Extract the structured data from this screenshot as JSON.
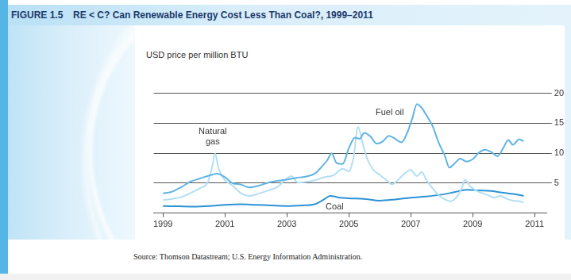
{
  "chart_data": {
    "type": "line",
    "figure_label": "FIGURE 1.5",
    "title": "RE < C? Can Renewable Energy Cost Less Than Coal?, 1999–2011",
    "ylabel": "USD price per million BTU",
    "source": "Source: Thomson Datastream; U.S. Energy Information Administration.",
    "xlim": [
      1998.7,
      2011.4
    ],
    "xticks": [
      1999,
      2001,
      2003,
      2005,
      2007,
      2009,
      2011
    ],
    "ylim": [
      0,
      20
    ],
    "yticks": [
      5,
      10,
      15,
      20
    ],
    "grid": true,
    "series": [
      {
        "name": "Fuel oil",
        "color": "#5fb3e4",
        "x": [
          1999.0,
          1999.3,
          1999.6,
          1999.9,
          2000.2,
          2000.5,
          2000.75,
          2001.0,
          2001.25,
          2001.5,
          2001.8,
          2002.1,
          2002.4,
          2002.7,
          2003.0,
          2003.3,
          2003.6,
          2003.9,
          2004.1,
          2004.3,
          2004.45,
          2004.6,
          2004.8,
          2005.0,
          2005.2,
          2005.35,
          2005.5,
          2005.7,
          2005.9,
          2006.1,
          2006.3,
          2006.5,
          2006.7,
          2006.9,
          2007.05,
          2007.2,
          2007.35,
          2007.5,
          2007.7,
          2007.9,
          2008.1,
          2008.25,
          2008.4,
          2008.6,
          2008.8,
          2009.0,
          2009.2,
          2009.4,
          2009.6,
          2009.8,
          2010.0,
          2010.15,
          2010.3,
          2010.5,
          2010.65
        ],
        "values": [
          3.3,
          3.6,
          4.4,
          5.3,
          5.8,
          6.3,
          6.6,
          6.0,
          5.0,
          4.8,
          4.3,
          4.6,
          5.1,
          5.4,
          5.6,
          5.9,
          6.1,
          6.6,
          7.6,
          8.8,
          10.0,
          8.4,
          8.2,
          10.8,
          12.6,
          12.4,
          13.4,
          12.8,
          11.6,
          12.0,
          12.9,
          12.4,
          11.8,
          13.6,
          15.8,
          18.2,
          17.6,
          16.4,
          14.6,
          11.8,
          9.6,
          7.6,
          8.2,
          9.1,
          8.6,
          9.0,
          10.1,
          10.6,
          10.2,
          9.5,
          11.0,
          12.2,
          11.4,
          12.3,
          12.0
        ]
      },
      {
        "name": "Natural gas",
        "color": "#b3def4",
        "x": [
          1999.0,
          1999.3,
          1999.6,
          1999.9,
          2000.2,
          2000.45,
          2000.6,
          2000.68,
          2000.8,
          2001.0,
          2001.25,
          2001.5,
          2001.8,
          2002.1,
          2002.4,
          2002.7,
          2003.0,
          2003.15,
          2003.35,
          2003.6,
          2003.9,
          2004.2,
          2004.5,
          2004.8,
          2005.0,
          2005.15,
          2005.3,
          2005.45,
          2005.6,
          2005.8,
          2006.0,
          2006.2,
          2006.4,
          2006.6,
          2006.8,
          2007.0,
          2007.2,
          2007.35,
          2007.5,
          2007.7,
          2007.9,
          2008.1,
          2008.3,
          2008.5,
          2008.65,
          2008.75,
          2008.9,
          2009.1,
          2009.3,
          2009.5,
          2009.7,
          2009.9,
          2010.1,
          2010.3,
          2010.5,
          2010.65
        ],
        "values": [
          2.2,
          2.4,
          2.7,
          3.4,
          4.2,
          5.2,
          8.0,
          10.0,
          7.4,
          5.5,
          4.6,
          3.4,
          2.9,
          3.3,
          3.8,
          4.4,
          5.8,
          6.2,
          5.1,
          5.2,
          5.5,
          6.0,
          6.3,
          7.4,
          7.0,
          9.2,
          14.4,
          11.6,
          9.0,
          7.2,
          6.4,
          5.6,
          4.8,
          5.6,
          6.6,
          7.2,
          6.2,
          6.9,
          5.6,
          4.2,
          3.0,
          2.3,
          2.0,
          2.8,
          4.2,
          5.6,
          4.6,
          3.8,
          3.4,
          3.0,
          2.6,
          2.9,
          2.4,
          2.1,
          2.0,
          1.8
        ]
      },
      {
        "name": "Coal",
        "color": "#2b93d6",
        "x": [
          1999.0,
          1999.5,
          2000.0,
          2000.5,
          2001.0,
          2001.5,
          2002.0,
          2002.5,
          2003.0,
          2003.5,
          2003.9,
          2004.2,
          2004.4,
          2004.7,
          2005.0,
          2005.5,
          2006.0,
          2006.5,
          2007.0,
          2007.5,
          2008.0,
          2008.4,
          2008.8,
          2009.2,
          2009.6,
          2010.0,
          2010.3,
          2010.65
        ],
        "values": [
          1.2,
          1.15,
          1.1,
          1.2,
          1.4,
          1.5,
          1.4,
          1.3,
          1.2,
          1.3,
          1.5,
          2.3,
          2.9,
          2.6,
          2.5,
          2.4,
          2.1,
          2.3,
          2.6,
          2.8,
          3.1,
          3.5,
          3.9,
          3.8,
          3.7,
          3.4,
          3.2,
          2.9
        ]
      }
    ]
  }
}
